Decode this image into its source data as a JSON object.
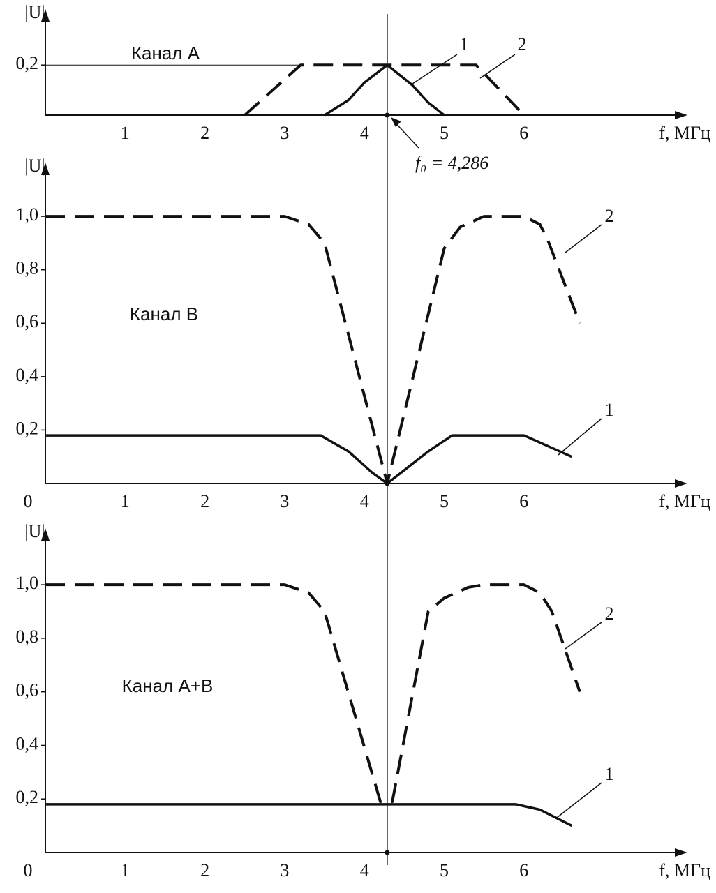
{
  "chart_data": [
    {
      "type": "line",
      "title": "Канал А",
      "ylabel": "|U|",
      "xlabel": "f, МГц",
      "xlim": [
        0,
        8
      ],
      "ylim": [
        0,
        0.39
      ],
      "xticks": [
        1,
        2,
        3,
        4,
        5,
        6
      ],
      "yticks": [
        {
          "value": 0.2,
          "label": "0,2"
        }
      ],
      "grid": true,
      "annotation": {
        "text": "f₀ = 4,286",
        "x": 4.286
      },
      "series": [
        {
          "name": "1",
          "color": "#111111",
          "style": "solid",
          "x": [
            3.5,
            3.8,
            4.0,
            4.286,
            4.6,
            4.8,
            5.0
          ],
          "values": [
            0,
            0.06,
            0.13,
            0.2,
            0.12,
            0.05,
            0
          ]
        },
        {
          "name": "2",
          "color": "#111111",
          "style": "dashed",
          "x": [
            2.5,
            3.2,
            5.4,
            6.0
          ],
          "values": [
            0,
            0.2,
            0.2,
            0
          ]
        }
      ]
    },
    {
      "type": "line",
      "title": "Канал В",
      "ylabel": "|U|",
      "xlabel": "f, МГц",
      "xlim": [
        0,
        8
      ],
      "ylim": [
        0,
        1.17
      ],
      "xticks": [
        0,
        1,
        2,
        3,
        4,
        5,
        6
      ],
      "yticks": [
        {
          "value": 0.2,
          "label": "0,2"
        },
        {
          "value": 0.4,
          "label": "0,4"
        },
        {
          "value": 0.6,
          "label": "0,6"
        },
        {
          "value": 0.8,
          "label": "0,8"
        },
        {
          "value": 1.0,
          "label": "1,0"
        }
      ],
      "series": [
        {
          "name": "1",
          "color": "#111111",
          "style": "solid",
          "x": [
            0,
            3.45,
            3.8,
            4.1,
            4.286,
            4.5,
            4.8,
            5.1,
            6.0,
            6.6
          ],
          "values": [
            0.18,
            0.18,
            0.12,
            0.04,
            0.0,
            0.05,
            0.12,
            0.18,
            0.18,
            0.1
          ]
        },
        {
          "name": "2",
          "color": "#111111",
          "style": "dashed",
          "x": [
            0,
            3.0,
            3.3,
            3.5,
            4.286,
            5.0,
            5.2,
            5.5,
            6.0,
            6.2,
            6.3,
            6.7
          ],
          "values": [
            1.0,
            1.0,
            0.97,
            0.9,
            0.0,
            0.88,
            0.96,
            1.0,
            1.0,
            0.97,
            0.91,
            0.6
          ]
        }
      ]
    },
    {
      "type": "line",
      "title": "Канал А+В",
      "ylabel": "|U|",
      "xlabel": "f, МГц",
      "xlim": [
        0,
        8
      ],
      "ylim": [
        0,
        1.18
      ],
      "xticks": [
        0,
        1,
        2,
        3,
        4,
        5,
        6
      ],
      "yticks": [
        {
          "value": 0.2,
          "label": "0,2"
        },
        {
          "value": 0.4,
          "label": "0,4"
        },
        {
          "value": 0.6,
          "label": "0,6"
        },
        {
          "value": 0.8,
          "label": "0,8"
        },
        {
          "value": 1.0,
          "label": "1,0"
        }
      ],
      "series": [
        {
          "name": "1",
          "color": "#111111",
          "style": "solid",
          "x": [
            0,
            5.9,
            6.2,
            6.6
          ],
          "values": [
            0.18,
            0.18,
            0.16,
            0.1
          ]
        },
        {
          "name": "2",
          "color": "#111111",
          "style": "dashed",
          "x": [
            0,
            3.0,
            3.3,
            3.5,
            4.2,
            4.35,
            4.8,
            5.0,
            5.3,
            5.5,
            6.0,
            6.2,
            6.35,
            6.7
          ],
          "values": [
            1.0,
            1.0,
            0.97,
            0.9,
            0.19,
            0.19,
            0.9,
            0.95,
            0.99,
            1.0,
            1.0,
            0.97,
            0.9,
            0.6
          ]
        }
      ]
    }
  ]
}
